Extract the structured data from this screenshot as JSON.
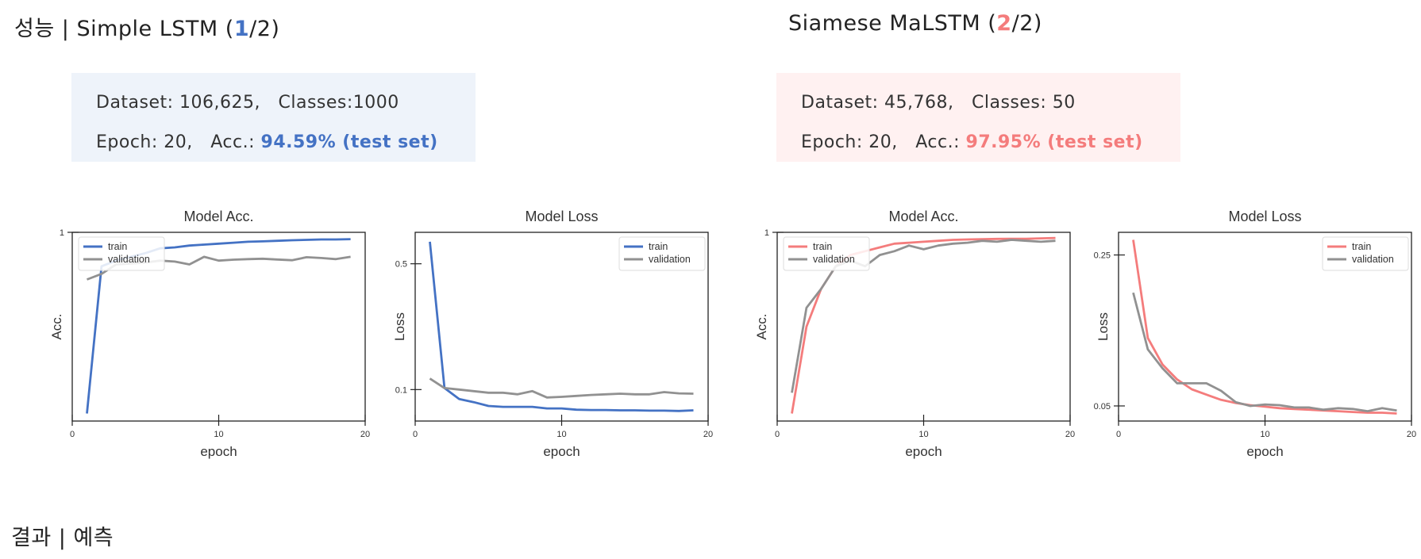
{
  "colors": {
    "blue": "#4472c4",
    "red": "#f47c7c",
    "gray": "#919191",
    "blue_bg": "#eef3fa",
    "red_bg": "#fff1f1"
  },
  "left": {
    "title_prefix": "성능 | Simple LSTM (",
    "title_num": "1",
    "title_suffix": "/2)",
    "info": {
      "dataset_label": "Dataset: 106,625,",
      "classes_label": "Classes:1000",
      "epoch_label": "Epoch: 20,",
      "acc_label": "Acc.:",
      "acc_value": "94.59% (test set)"
    }
  },
  "right": {
    "title_prefix": "Siamese MaLSTM (",
    "title_num": "2",
    "title_suffix": "/2)",
    "info": {
      "dataset_label": "Dataset: 45,768,",
      "classes_label": "Classes: 50",
      "epoch_label": "Epoch: 20,",
      "acc_label": "Acc.:",
      "acc_value": "97.95% (test set)"
    }
  },
  "bottom_title": "결과 | 예측",
  "chart_data": [
    {
      "type": "line",
      "title": "Model Acc.",
      "xlabel": "epoch",
      "ylabel": "Acc.",
      "xlim": [
        0,
        20
      ],
      "ylim": [
        0.0,
        1.0
      ],
      "xticks": [
        0,
        10,
        20
      ],
      "yticks": [
        {
          "v": 1.0,
          "label": "1"
        }
      ],
      "legend": "top-left",
      "color": "blue",
      "series": [
        {
          "name": "train",
          "color": "blue",
          "x": [
            1,
            2,
            3,
            4,
            5,
            6,
            7,
            8,
            9,
            10,
            11,
            12,
            13,
            14,
            15,
            16,
            17,
            18,
            19
          ],
          "values": [
            0.04,
            0.82,
            0.85,
            0.87,
            0.89,
            0.915,
            0.92,
            0.93,
            0.935,
            0.94,
            0.945,
            0.95,
            0.952,
            0.955,
            0.958,
            0.96,
            0.962,
            0.962,
            0.964
          ]
        },
        {
          "name": "validation",
          "color": "gray",
          "x": [
            1,
            2,
            3,
            4,
            5,
            6,
            7,
            8,
            9,
            10,
            11,
            12,
            13,
            14,
            15,
            16,
            17,
            18,
            19
          ],
          "values": [
            0.75,
            0.78,
            0.83,
            0.835,
            0.84,
            0.85,
            0.845,
            0.83,
            0.87,
            0.85,
            0.855,
            0.858,
            0.86,
            0.856,
            0.852,
            0.868,
            0.864,
            0.858,
            0.87
          ]
        }
      ]
    },
    {
      "type": "line",
      "title": "Model Loss",
      "xlabel": "epoch",
      "ylabel": "Loss",
      "xlim": [
        0,
        20
      ],
      "ylim": [
        0.0,
        0.6
      ],
      "xticks": [
        0,
        10,
        20
      ],
      "yticks": [
        {
          "v": 0.5,
          "label": "0.5"
        },
        {
          "v": 0.1,
          "label": "0.1"
        }
      ],
      "legend": "top-right",
      "color": "blue",
      "series": [
        {
          "name": "train",
          "color": "blue",
          "x": [
            1,
            2,
            3,
            4,
            5,
            6,
            7,
            8,
            9,
            10,
            11,
            12,
            13,
            14,
            15,
            16,
            17,
            18,
            19
          ],
          "values": [
            0.57,
            0.105,
            0.07,
            0.06,
            0.048,
            0.045,
            0.045,
            0.045,
            0.04,
            0.04,
            0.036,
            0.035,
            0.035,
            0.034,
            0.034,
            0.033,
            0.033,
            0.032,
            0.034
          ]
        },
        {
          "name": "validation",
          "color": "gray",
          "x": [
            1,
            2,
            3,
            4,
            5,
            6,
            7,
            8,
            9,
            10,
            11,
            12,
            13,
            14,
            15,
            16,
            17,
            18,
            19
          ],
          "values": [
            0.135,
            0.105,
            0.1,
            0.095,
            0.09,
            0.09,
            0.085,
            0.095,
            0.075,
            0.077,
            0.08,
            0.083,
            0.085,
            0.087,
            0.085,
            0.085,
            0.092,
            0.088,
            0.087
          ]
        }
      ]
    },
    {
      "type": "line",
      "title": "Model Acc.",
      "xlabel": "epoch",
      "ylabel": "Acc.",
      "xlim": [
        0,
        20
      ],
      "ylim": [
        0.0,
        1.0
      ],
      "xticks": [
        0,
        10,
        20
      ],
      "yticks": [
        {
          "v": 1.0,
          "label": "1"
        }
      ],
      "legend": "top-left",
      "color": "red",
      "series": [
        {
          "name": "train",
          "color": "red",
          "x": [
            1,
            2,
            3,
            4,
            5,
            6,
            7,
            8,
            9,
            10,
            11,
            12,
            13,
            14,
            15,
            16,
            17,
            18,
            19
          ],
          "values": [
            0.04,
            0.5,
            0.7,
            0.82,
            0.88,
            0.9,
            0.92,
            0.94,
            0.945,
            0.95,
            0.955,
            0.96,
            0.962,
            0.964,
            0.965,
            0.966,
            0.966,
            0.968,
            0.97
          ]
        },
        {
          "name": "validation",
          "color": "gray",
          "x": [
            1,
            2,
            3,
            4,
            5,
            6,
            7,
            8,
            9,
            10,
            11,
            12,
            13,
            14,
            15,
            16,
            17,
            18,
            19
          ],
          "values": [
            0.15,
            0.6,
            0.7,
            0.82,
            0.85,
            0.82,
            0.88,
            0.9,
            0.93,
            0.91,
            0.93,
            0.94,
            0.945,
            0.955,
            0.95,
            0.96,
            0.955,
            0.95,
            0.955
          ]
        }
      ]
    },
    {
      "type": "line",
      "title": "Model Loss",
      "xlabel": "epoch",
      "ylabel": "Loss",
      "xlim": [
        0,
        20
      ],
      "ylim": [
        0.03,
        0.28
      ],
      "xticks": [
        0,
        10,
        20
      ],
      "yticks": [
        {
          "v": 0.25,
          "label": "0.25"
        },
        {
          "v": 0.05,
          "label": "0.05"
        }
      ],
      "legend": "top-right",
      "color": "red",
      "series": [
        {
          "name": "train",
          "color": "red",
          "x": [
            1,
            2,
            3,
            4,
            5,
            6,
            7,
            8,
            9,
            10,
            11,
            12,
            13,
            14,
            15,
            16,
            17,
            18,
            19
          ],
          "values": [
            0.27,
            0.14,
            0.105,
            0.085,
            0.072,
            0.065,
            0.058,
            0.054,
            0.051,
            0.049,
            0.047,
            0.046,
            0.045,
            0.044,
            0.043,
            0.042,
            0.041,
            0.041,
            0.04
          ]
        },
        {
          "name": "validation",
          "color": "gray",
          "x": [
            1,
            2,
            3,
            4,
            5,
            6,
            7,
            8,
            9,
            10,
            11,
            12,
            13,
            14,
            15,
            16,
            17,
            18,
            19
          ],
          "values": [
            0.2,
            0.125,
            0.1,
            0.08,
            0.08,
            0.08,
            0.07,
            0.055,
            0.05,
            0.052,
            0.051,
            0.048,
            0.048,
            0.045,
            0.047,
            0.046,
            0.043,
            0.047,
            0.044
          ]
        }
      ]
    }
  ]
}
